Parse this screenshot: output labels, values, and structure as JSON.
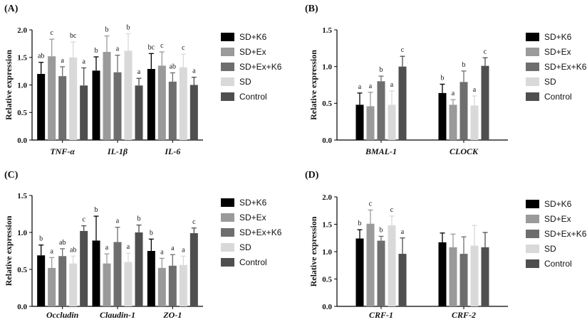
{
  "series_styles": [
    {
      "name": "SD+K6",
      "color": "#000000"
    },
    {
      "name": "SD+Ex",
      "color": "#9a9a9a"
    },
    {
      "name": "SD+Ex+K6",
      "color": "#6e6e6e"
    },
    {
      "name": "SD",
      "color": "#d9d9d9"
    },
    {
      "name": "Control",
      "color": "#4f4f4f"
    }
  ],
  "chart_data": [
    {
      "panel": "(A)",
      "type": "bar",
      "ylabel": "Relative expression",
      "ylim": [
        0,
        2.0
      ],
      "yticks": [
        "0.0",
        "0.5",
        "1.0",
        "1.5",
        "2.0"
      ],
      "categories": [
        "TNF-α",
        "IL-1β",
        "IL-6"
      ],
      "series": [
        {
          "name": "SD+K6",
          "values": [
            1.2,
            1.26,
            1.29
          ],
          "errors": [
            0.21,
            0.25,
            0.28
          ],
          "sig": [
            "ab",
            "b",
            "bc"
          ]
        },
        {
          "name": "SD+Ex",
          "values": [
            1.52,
            1.6,
            1.35
          ],
          "errors": [
            0.31,
            0.29,
            0.25
          ],
          "sig": [
            "c",
            "b",
            "c"
          ]
        },
        {
          "name": "SD+Ex+K6",
          "values": [
            1.16,
            1.23,
            1.06
          ],
          "errors": [
            0.17,
            0.31,
            0.16
          ],
          "sig": [
            "a",
            "a",
            "ab"
          ]
        },
        {
          "name": "SD",
          "values": [
            1.5,
            1.62,
            1.32
          ],
          "errors": [
            0.28,
            0.31,
            0.24
          ],
          "sig": [
            "bc",
            "b",
            "c"
          ]
        },
        {
          "name": "Control",
          "values": [
            0.99,
            0.99,
            1.0
          ],
          "errors": [
            0.32,
            0.13,
            0.14
          ],
          "sig": [
            "a",
            "a",
            "a"
          ]
        }
      ]
    },
    {
      "panel": "(B)",
      "type": "bar",
      "ylabel": "Relative expression",
      "ylim": [
        0,
        1.5
      ],
      "yticks": [
        "0.0",
        "0.5",
        "1.0",
        "1.5"
      ],
      "categories": [
        "BMAL-1",
        "CLOCK"
      ],
      "series": [
        {
          "name": "SD+K6",
          "values": [
            0.48,
            0.64
          ],
          "errors": [
            0.16,
            0.12
          ],
          "sig": [
            "a",
            "b"
          ]
        },
        {
          "name": "SD+Ex",
          "values": [
            0.46,
            0.48
          ],
          "errors": [
            0.19,
            0.07
          ],
          "sig": [
            "a",
            "a"
          ]
        },
        {
          "name": "SD+Ex+K6",
          "values": [
            0.8,
            0.79
          ],
          "errors": [
            0.07,
            0.15
          ],
          "sig": [
            "b",
            "b"
          ]
        },
        {
          "name": "SD",
          "values": [
            0.48,
            0.47
          ],
          "errors": [
            0.19,
            0.13
          ],
          "sig": [
            "a",
            "a"
          ]
        },
        {
          "name": "Control",
          "values": [
            1.0,
            1.01
          ],
          "errors": [
            0.14,
            0.11
          ],
          "sig": [
            "c",
            "c"
          ]
        }
      ]
    },
    {
      "panel": "(C)",
      "type": "bar",
      "ylabel": "Relative expression",
      "ylim": [
        0,
        1.5
      ],
      "yticks": [
        "0.0",
        "0.5",
        "1.0",
        "1.5"
      ],
      "categories": [
        "Occludin",
        "Claudin-1",
        "ZO-1"
      ],
      "series": [
        {
          "name": "SD+K6",
          "values": [
            0.69,
            0.89,
            0.75
          ],
          "errors": [
            0.14,
            0.33,
            0.16
          ],
          "sig": [
            "b",
            "b",
            "b"
          ]
        },
        {
          "name": "SD+Ex",
          "values": [
            0.52,
            0.58,
            0.52
          ],
          "errors": [
            0.14,
            0.13,
            0.13
          ],
          "sig": [
            "a",
            "a",
            "a"
          ]
        },
        {
          "name": "SD+Ex+K6",
          "values": [
            0.68,
            0.87,
            0.55
          ],
          "errors": [
            0.1,
            0.2,
            0.15
          ],
          "sig": [
            "ab",
            "a",
            "a"
          ]
        },
        {
          "name": "SD",
          "values": [
            0.58,
            0.6,
            0.56
          ],
          "errors": [
            0.1,
            0.12,
            0.12
          ],
          "sig": [
            "ab",
            "a",
            "a"
          ]
        },
        {
          "name": "Control",
          "values": [
            1.02,
            1.0,
            0.99
          ],
          "errors": [
            0.07,
            0.1,
            0.07
          ],
          "sig": [
            "c",
            "b",
            "c"
          ]
        }
      ]
    },
    {
      "panel": "(D)",
      "type": "bar",
      "ylabel": "Relative expression",
      "ylim": [
        0,
        2.0
      ],
      "yticks": [
        "0.0",
        "0.5",
        "1.0",
        "1.5",
        "2.0"
      ],
      "categories": [
        "CRF-1",
        "CRF-2"
      ],
      "series": [
        {
          "name": "SD+K6",
          "values": [
            1.24,
            1.17
          ],
          "errors": [
            0.16,
            0.17
          ],
          "sig": [
            "b",
            ""
          ]
        },
        {
          "name": "SD+Ex",
          "values": [
            1.51,
            1.08
          ],
          "errors": [
            0.25,
            0.24
          ],
          "sig": [
            "c",
            ""
          ]
        },
        {
          "name": "SD+Ex+K6",
          "values": [
            1.2,
            0.96
          ],
          "errors": [
            0.08,
            0.31
          ],
          "sig": [
            "b",
            ""
          ]
        },
        {
          "name": "SD",
          "values": [
            1.48,
            1.11
          ],
          "errors": [
            0.17,
            0.37
          ],
          "sig": [
            "c",
            ""
          ]
        },
        {
          "name": "Control",
          "values": [
            0.96,
            1.08
          ],
          "errors": [
            0.29,
            0.27
          ],
          "sig": [
            "a",
            ""
          ]
        }
      ]
    }
  ]
}
